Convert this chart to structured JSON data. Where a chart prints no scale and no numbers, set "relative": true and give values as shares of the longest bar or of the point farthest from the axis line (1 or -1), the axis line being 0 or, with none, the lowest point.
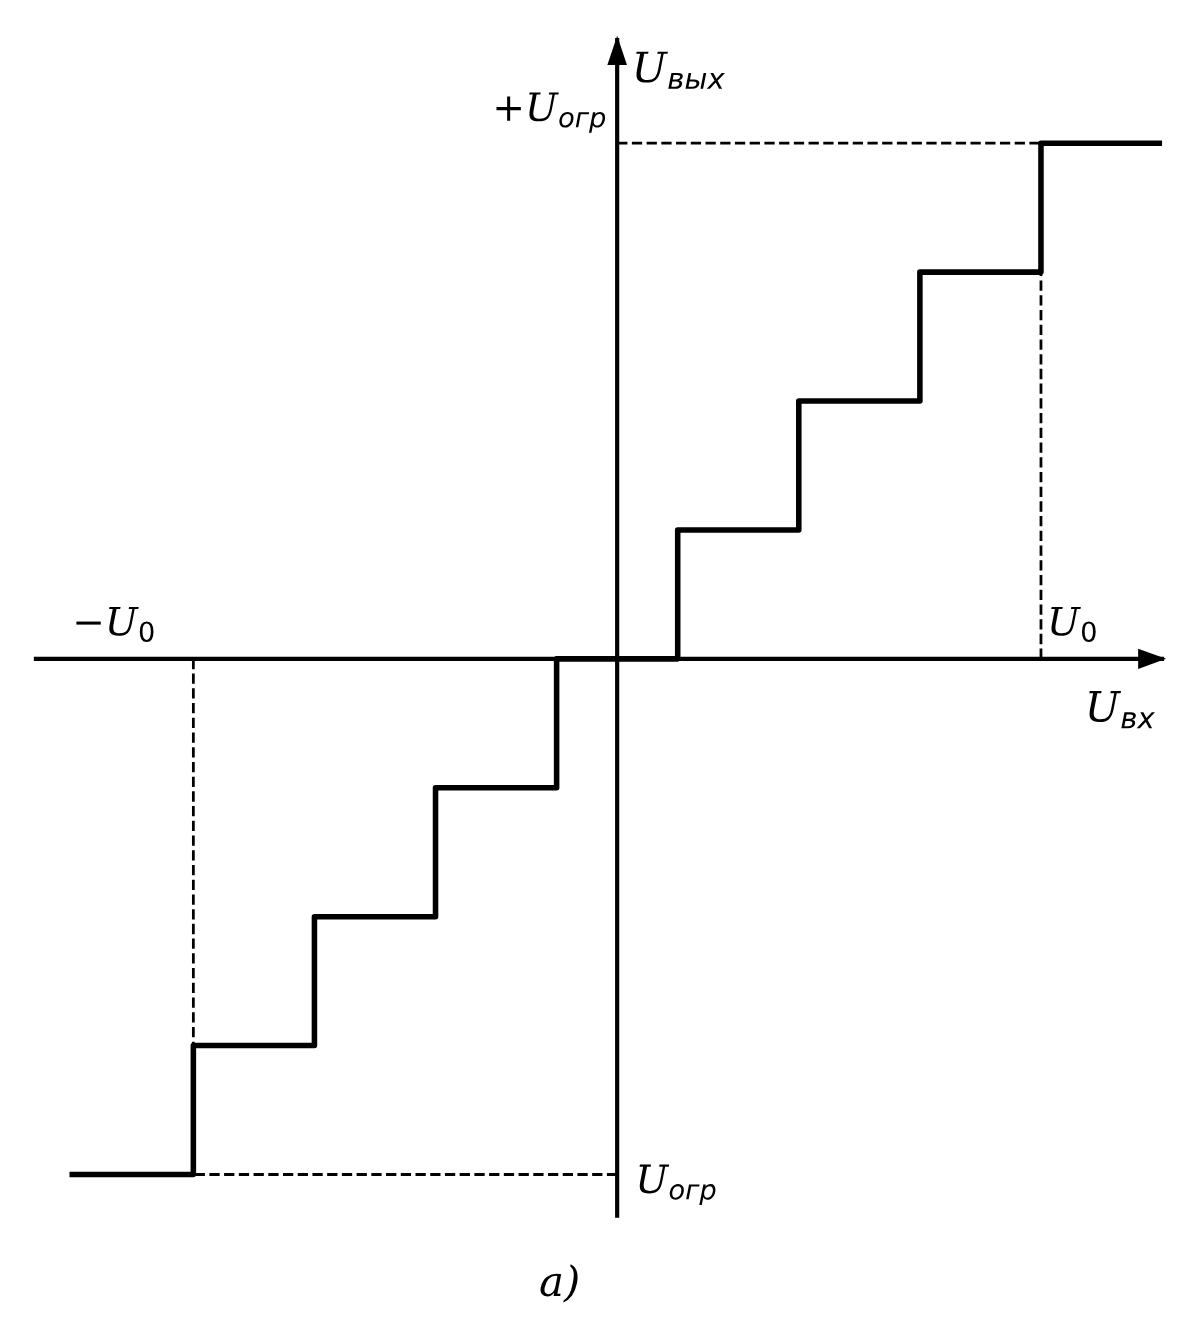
{
  "chart_data": {
    "type": "step",
    "relative": true,
    "xlabel": "U$_{вх}$",
    "ylabel": "U$_{вых}$",
    "categories": [
      null,
      null,
      null,
      null,
      null,
      null,
      null,
      null,
      null,
      null
    ],
    "series": [
      {
        "color": "#000000",
        "values": [
          -1,
          -0.75,
          -0.5,
          -0.25,
          0,
          0.25,
          0.5,
          0.75,
          1,
          1
        ]
      }
    ],
    "ref_lines": [
      {
        "axis": "y",
        "value": -1,
        "line_style": "dashed"
      },
      {
        "axis": "y",
        "value": 1,
        "line_style": "dashed"
      }
    ],
    "annotations": [
      "−U$_{0}$",
      "U$_{0}$",
      "+U$_{огр}$",
      "U$_{огр}$",
      "а)"
    ],
    "legend": false
  }
}
